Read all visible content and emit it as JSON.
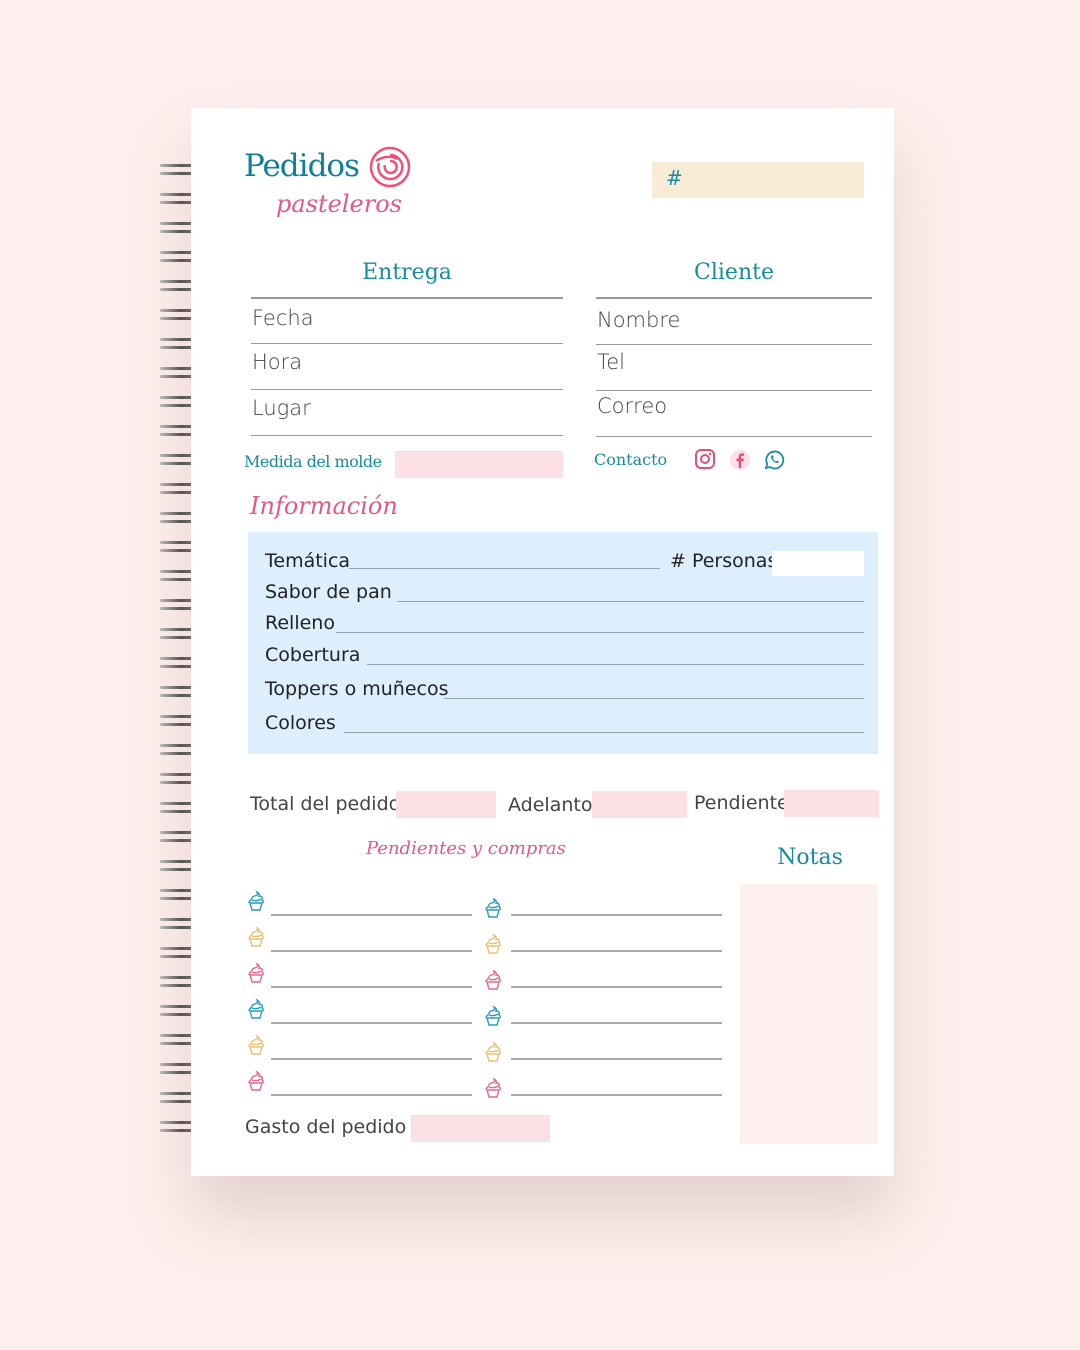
{
  "header": {
    "title": "Pedidos",
    "subtitle": "pasteleros",
    "order_number_label": "#"
  },
  "entrega": {
    "heading": "Entrega",
    "fields": [
      "Fecha",
      "Hora",
      "Lugar"
    ],
    "mold_label": "Medida del molde"
  },
  "cliente": {
    "heading": "Cliente",
    "fields": [
      "Nombre",
      "Tel",
      "Correo"
    ],
    "contact_label": "Contacto",
    "contact_icons": [
      "instagram-icon",
      "facebook-icon",
      "whatsapp-icon"
    ]
  },
  "informacion": {
    "heading": "Información",
    "tematica": "Temática",
    "personas": "# Personas",
    "rows": [
      "Sabor de pan",
      "Relleno",
      "Cobertura",
      "Toppers o muñecos",
      "Colores"
    ]
  },
  "totals": {
    "total": "Total del pedido",
    "adelanto": "Adelanto",
    "pendiente": "Pendiente"
  },
  "pendientes": {
    "heading": "Pendientes y compras",
    "icon_colors": [
      "#2a9cbf",
      "#e8c270",
      "#e06a90"
    ]
  },
  "notas": {
    "heading": "Notas"
  },
  "gasto": {
    "label": "Gasto del pedido"
  },
  "colors": {
    "teal": "#1a8aa0",
    "pink": "#df5a84",
    "light_blue": "#ddeffc",
    "pink_fill": "#fde0e6",
    "beige": "#f8ecd6"
  }
}
